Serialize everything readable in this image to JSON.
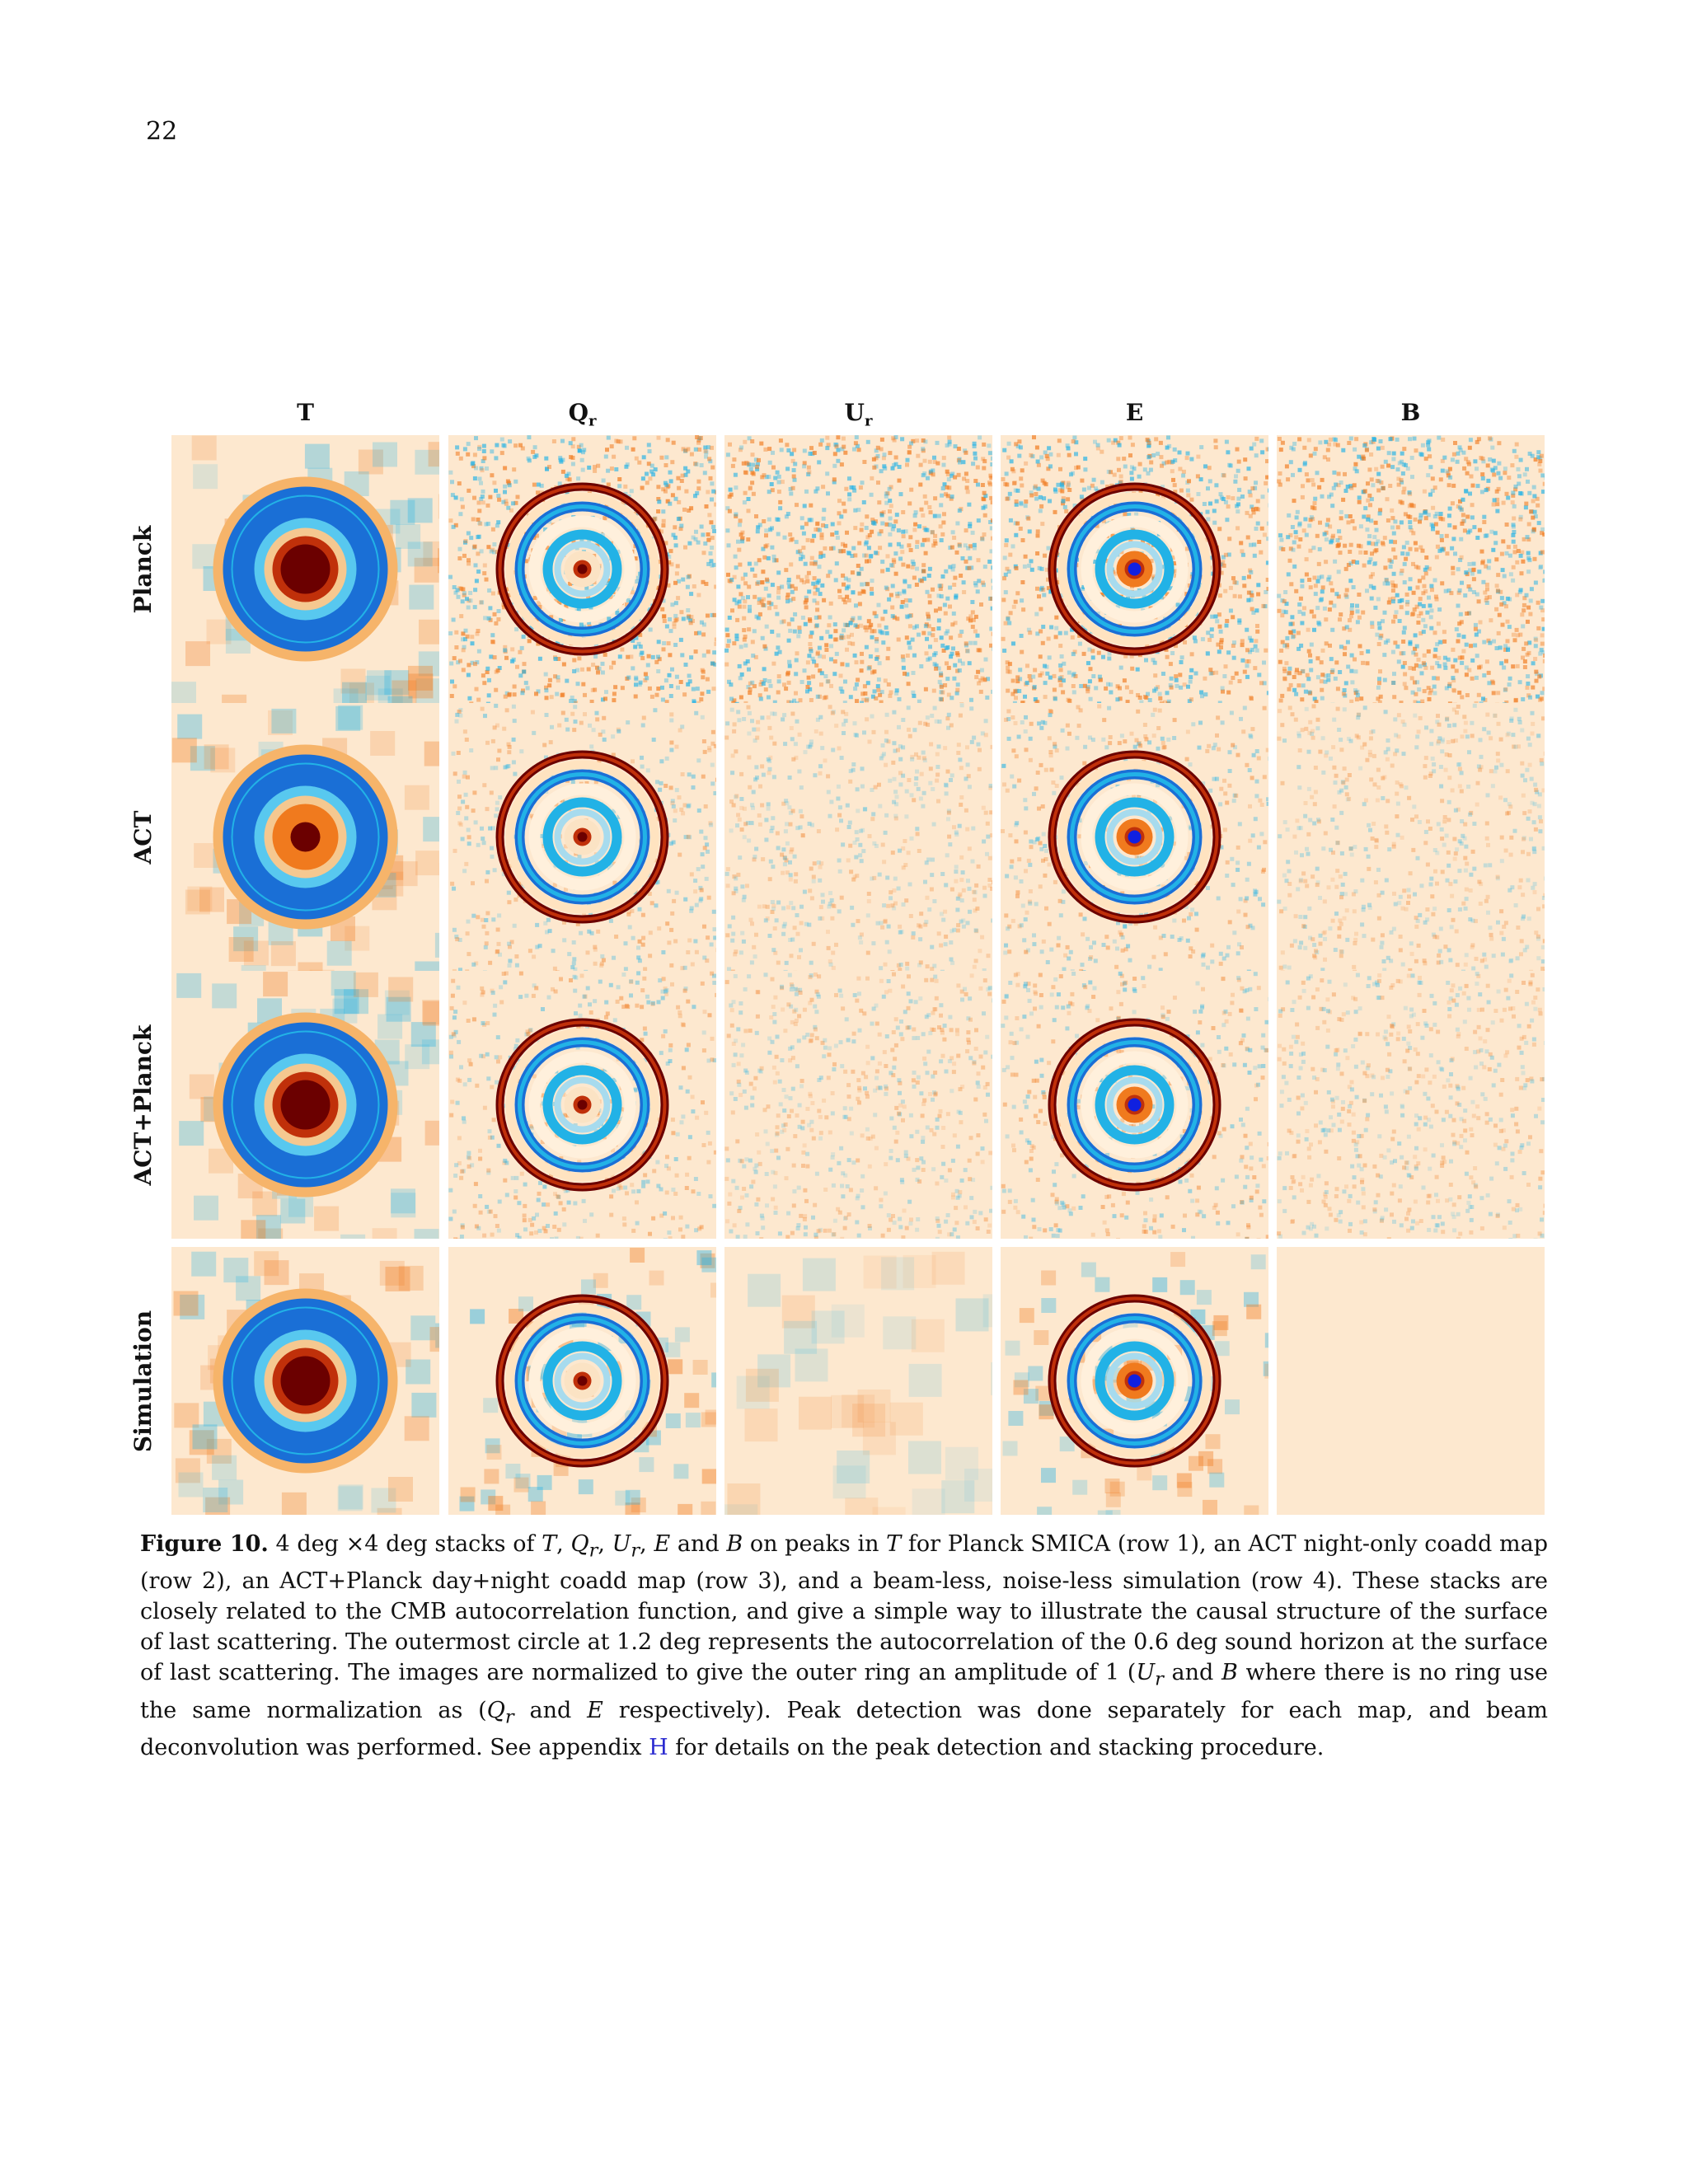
{
  "page_number": "22",
  "columns": [
    "T",
    "Q",
    "U",
    "E",
    "B"
  ],
  "column_subscripts": [
    "",
    "r",
    "r",
    "",
    ""
  ],
  "rows": [
    "Planck",
    "ACT",
    "ACT+Planck",
    "Simulation"
  ],
  "caption": {
    "label": "Figure 10.",
    "text_1": " 4 deg ×4 deg stacks of ",
    "T": "T",
    "sep1": ", ",
    "Qr": "Q",
    "r": "r",
    "sep2": ", ",
    "Ur": "U",
    "sep3": ", ",
    "E": "E",
    "and1": " and ",
    "B": "B",
    "text_2": " on peaks in ",
    "text_3": " for Planck SMICA (row 1), an ACT night-only coadd map (row 2), an ACT+Planck day+night coadd map (row 3), and a beam-less, noise-less simulation (row 4). These stacks are closely related to the CMB autocorrelation function, and give a simple way to illustrate the causal structure of the surface of last scattering. The outermost circle at 1.2 deg represents the autocorrelation of the 0.6 deg sound horizon at the surface of last scattering. The images are normalized to give the outer ring an amplitude of 1 (",
    "text_4": " where there is no ring use the same normalization as (",
    "text_5": " respectively). Peak detection was done separately for each map, and beam deconvolution was performed. See appendix ",
    "appendix_link": "H",
    "text_6": " for details on the peak detection and stacking procedure."
  },
  "colors": {
    "dark_red": "#6b0000",
    "red": "#c0300a",
    "orange": "#f07a1e",
    "cream": "#fde8cf",
    "light_blue": "#a7dbee",
    "cyan": "#22b2e6",
    "blue": "#1a6fd6",
    "deep_blue": "#1020e0"
  }
}
